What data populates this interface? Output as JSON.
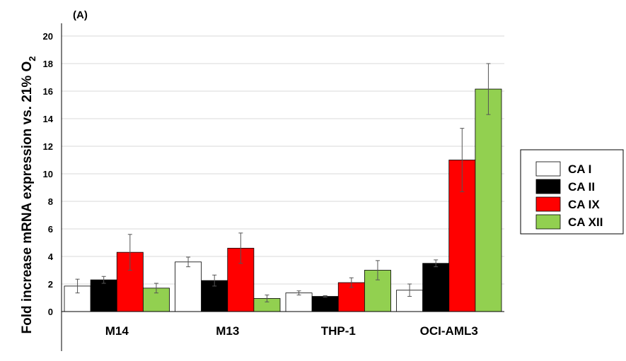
{
  "chart_data": {
    "type": "bar",
    "panel_label": "(A)",
    "ylabel": "Fold increase mRNA expression vs. 21% O",
    "ylabel_subscript": "2",
    "ylim": [
      0,
      20
    ],
    "yticks": [
      0,
      2,
      4,
      6,
      8,
      10,
      12,
      14,
      16,
      18,
      20
    ],
    "grid": true,
    "legend_position": "right",
    "categories": [
      "M14",
      "M13",
      "THP-1",
      "OCI-AML3"
    ],
    "series": [
      {
        "name": "CA I",
        "color": "#ffffff",
        "values": [
          1.85,
          3.6,
          1.35,
          1.55
        ],
        "errors": [
          0.5,
          0.35,
          0.15,
          0.45
        ]
      },
      {
        "name": "CA II",
        "color": "#000000",
        "values": [
          2.3,
          2.25,
          1.1,
          3.5
        ],
        "errors": [
          0.25,
          0.4,
          0.05,
          0.25
        ]
      },
      {
        "name": "CA IX",
        "color": "#ff0000",
        "values": [
          4.3,
          4.6,
          2.1,
          11.0
        ],
        "errors": [
          1.3,
          1.1,
          0.35,
          2.3
        ]
      },
      {
        "name": "CA XII",
        "color": "#92d050",
        "values": [
          1.7,
          0.95,
          3.0,
          16.15
        ],
        "errors": [
          0.35,
          0.25,
          0.7,
          1.85
        ]
      }
    ]
  }
}
